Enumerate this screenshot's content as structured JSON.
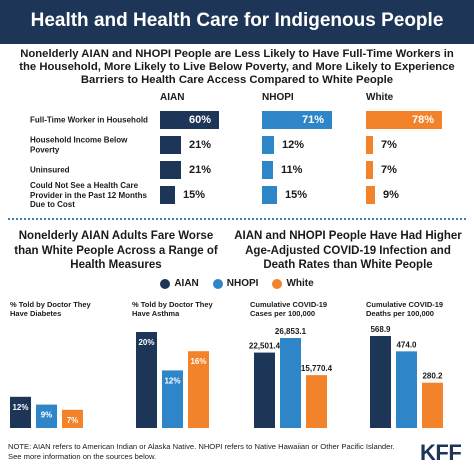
{
  "header": {
    "title": "Health and Health Care for Indigenous People"
  },
  "top_section": {
    "subtitle": "Nonelderly AIAN and NHOPI People are Less Likely to Have Full-Time Workers in the Household, More Likely to Live Below Poverty, and More Likely to Experience Barriers to Health Care Access Compared to White People",
    "columns": [
      "AIAN",
      "NHOPI",
      "White"
    ],
    "rows": [
      {
        "label": "Full-Time Worker in Household",
        "values": [
          "60%",
          "71%",
          "78%"
        ]
      },
      {
        "label": "Household Income Below Poverty",
        "values": [
          "21%",
          "12%",
          "7%"
        ]
      },
      {
        "label": "Uninsured",
        "values": [
          "21%",
          "11%",
          "7%"
        ]
      },
      {
        "label": "Could Not See a Health Care Provider in the Past 12 Months Due to Cost",
        "values": [
          "15%",
          "15%",
          "9%"
        ]
      }
    ]
  },
  "left_section_title": "Nonelderly AIAN Adults Fare Worse than White People Across a Range of Health Measures",
  "right_section_title": "AIAN and NHOPI People Have Had Higher Age-Adjusted COVID-19 Infection and Death Rates than White People",
  "legend": [
    {
      "label": "AIAN",
      "color": "#1d3557"
    },
    {
      "label": "NHOPI",
      "color": "#2e86c8"
    },
    {
      "label": "White",
      "color": "#f2832a"
    }
  ],
  "colors": {
    "aian": "#1d3557",
    "nhopi": "#2e86c8",
    "white": "#f2832a",
    "header": "#1d3557"
  },
  "chart_data": [
    {
      "type": "bar",
      "title": "Nonelderly AIAN and NHOPI People are Less Likely to Have Full-Time Workers in the Household, More Likely to Live Below Poverty, and More Likely to Experience Barriers to Health Care Access Compared to White People",
      "orientation": "horizontal",
      "categories": [
        "Full-Time Worker in Household",
        "Household Income Below Poverty",
        "Uninsured",
        "Could Not See a Health Care Provider in the Past 12 Months Due to Cost"
      ],
      "series": [
        {
          "name": "AIAN",
          "values": [
            60,
            21,
            21,
            15
          ]
        },
        {
          "name": "NHOPI",
          "values": [
            71,
            12,
            11,
            15
          ]
        },
        {
          "name": "White",
          "values": [
            78,
            7,
            7,
            9
          ]
        }
      ],
      "unit": "%"
    },
    {
      "type": "bar",
      "title": "% Told by Doctor They Have Diabetes",
      "categories": [
        "AIAN",
        "NHOPI",
        "White"
      ],
      "values": [
        12,
        9,
        7
      ],
      "labels": [
        "12%",
        "9%",
        "7%"
      ]
    },
    {
      "type": "bar",
      "title": "% Told by Doctor They Have Asthma",
      "categories": [
        "AIAN",
        "NHOPI",
        "White"
      ],
      "values": [
        20,
        12,
        16
      ],
      "labels": [
        "20%",
        "12%",
        "16%"
      ]
    },
    {
      "type": "bar",
      "title": "Cumulative COVID-19 Cases per 100,000",
      "categories": [
        "AIAN",
        "NHOPI",
        "White"
      ],
      "values": [
        22501.4,
        26853.1,
        15770.4
      ],
      "labels": [
        "22,501.4",
        "26,853.1",
        "15,770.4"
      ]
    },
    {
      "type": "bar",
      "title": "Cumulative COVID-19 Deaths per 100,000",
      "categories": [
        "AIAN",
        "NHOPI",
        "White"
      ],
      "values": [
        568.9,
        474.0,
        280.2
      ],
      "labels": [
        "568.9",
        "474.0",
        "280.2"
      ]
    }
  ],
  "note": "NOTE: AIAN refers to American Indian or Alaska Native. NHOPI refers to Native Hawaiian or Other Pacific Islander. See more information on the sources below.",
  "logo": "KFF"
}
